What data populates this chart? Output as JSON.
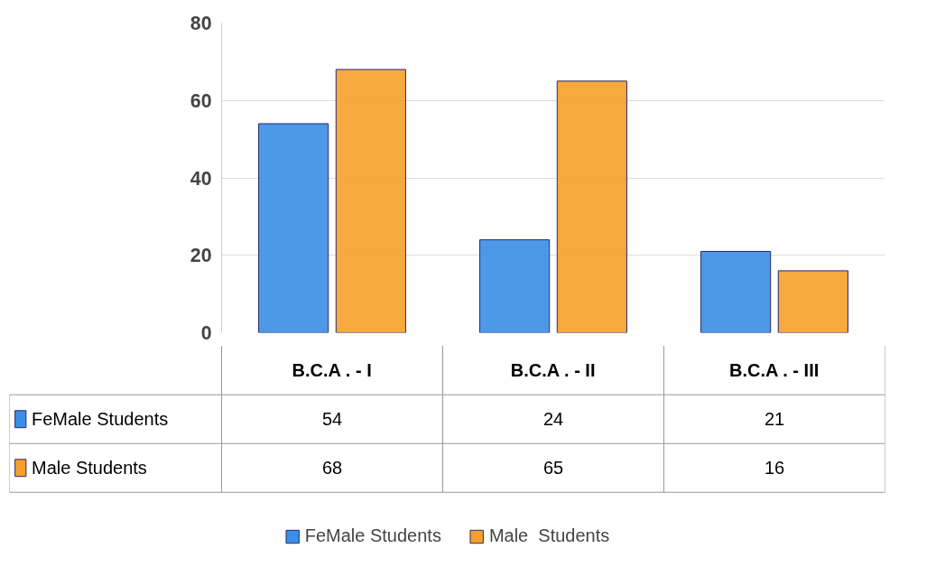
{
  "chart_data": {
    "type": "bar",
    "categories": [
      "B.C.A . - I",
      "B.C.A . - II",
      "B.C.A . - III"
    ],
    "series": [
      {
        "name": "FeMale Students",
        "color": "#3a8ee6",
        "values": [
          54,
          24,
          21
        ]
      },
      {
        "name": "Male  Students",
        "color": "#f5a02a",
        "values": [
          68,
          65,
          16
        ]
      }
    ],
    "ylim": [
      0,
      80
    ],
    "yticks": [
      0,
      20,
      40,
      60,
      80
    ],
    "grid": "y",
    "legend": "bottom",
    "data_labels": true
  }
}
